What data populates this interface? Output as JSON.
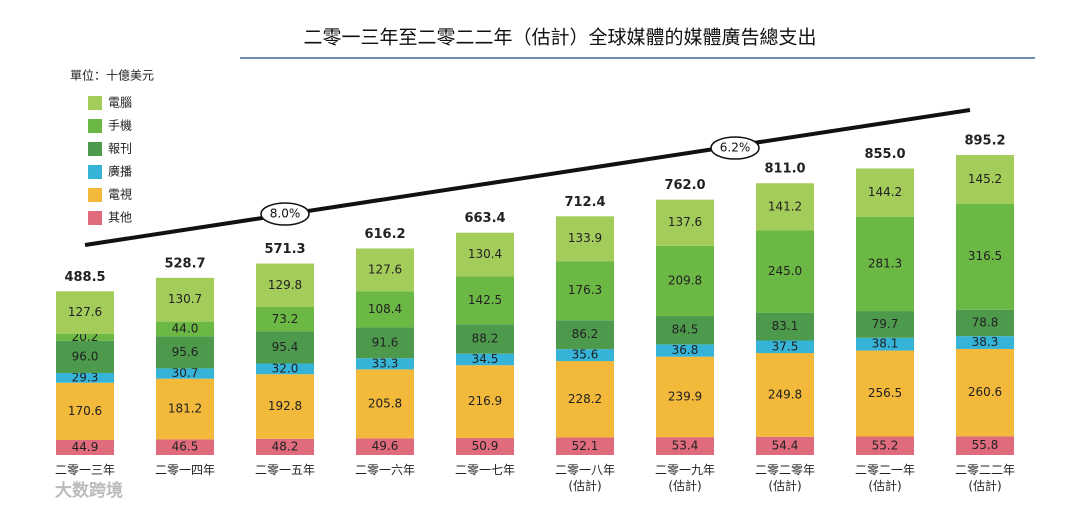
{
  "chart_data": {
    "type": "stacked-bar",
    "title": "二零一三年至二零二二年（估計）全球媒體的媒體廣告總支出",
    "unit_label": "單位：十億美元",
    "categories": [
      "二零一三年",
      "二零一四年",
      "二零一五年",
      "二零一六年",
      "二零一七年",
      "二零一八年\n(估計)",
      "二零一九年\n(估計)",
      "二零二零年\n(估計)",
      "二零二一年\n(估計)",
      "二零二二年\n(估計)"
    ],
    "series": [
      {
        "name": "其他",
        "color": "#e06b7d",
        "values": [
          44.9,
          46.5,
          48.2,
          49.6,
          50.9,
          52.1,
          53.4,
          54.4,
          55.2,
          55.8
        ],
        "value_labels": [
          "44.9",
          "46.5",
          "48.2",
          "49.6",
          "50.9",
          "52.1",
          "53.4",
          "54.4",
          "55.2",
          "55.8"
        ]
      },
      {
        "name": "電視",
        "color": "#f2b93b",
        "values": [
          170.6,
          181.2,
          192.8,
          205.8,
          216.9,
          228.2,
          239.9,
          249.8,
          256.5,
          260.6
        ],
        "value_labels": [
          "170.6",
          "181.2",
          "192.8",
          "205.8",
          "216.9",
          "228.2",
          "239.9",
          "249.8",
          "256.5",
          "260.6"
        ]
      },
      {
        "name": "廣播",
        "color": "#35b4d8",
        "values": [
          29.3,
          30.7,
          32.0,
          33.3,
          34.5,
          35.6,
          36.8,
          37.5,
          38.1,
          38.3
        ],
        "value_labels": [
          "29.3",
          "30.7",
          "32.0",
          "33.3",
          "34.5",
          "35.6",
          "36.8",
          "37.5",
          "38.1",
          "38.3"
        ]
      },
      {
        "name": "報刊",
        "color": "#4e9a4c",
        "values": [
          96.0,
          95.6,
          95.4,
          91.6,
          88.2,
          86.2,
          84.5,
          83.1,
          79.7,
          78.8
        ],
        "value_labels": [
          "96.0",
          "95.6",
          "95.4",
          "91.6",
          "88.2",
          "86.2",
          "84.5",
          "83.1",
          "79.7",
          "78.8"
        ]
      },
      {
        "name": "手機",
        "color": "#6cb844",
        "values": [
          20.2,
          44.0,
          73.2,
          108.4,
          142.5,
          176.3,
          209.8,
          245.0,
          281.3,
          316.5
        ],
        "value_labels": [
          "20.2",
          "44.0",
          "73.2",
          "108.4",
          "142.5",
          "176.3",
          "209.8",
          "245.0",
          "281.3",
          "316.5"
        ]
      },
      {
        "name": "電腦",
        "color": "#a4cc5a",
        "values": [
          127.6,
          130.7,
          129.8,
          127.6,
          130.4,
          133.9,
          137.6,
          141.2,
          144.2,
          145.2
        ],
        "value_labels": [
          "127.6",
          "130.7",
          "129.8",
          "127.6",
          "130.4",
          "133.9",
          "137.6",
          "141.2",
          "144.2",
          "145.2"
        ]
      }
    ],
    "totals": {
      "values": [
        488.5,
        528.7,
        571.3,
        616.2,
        663.4,
        712.4,
        762.0,
        811.0,
        855.0,
        895.2
      ],
      "value_labels": [
        "488.5",
        "528.7",
        "571.3",
        "616.2",
        "663.4",
        "712.4",
        "762.0",
        "811.0",
        "855.0",
        "895.2"
      ]
    },
    "annotations": [
      "8.0%",
      "6.2%"
    ],
    "watermark": "大数跨境"
  }
}
